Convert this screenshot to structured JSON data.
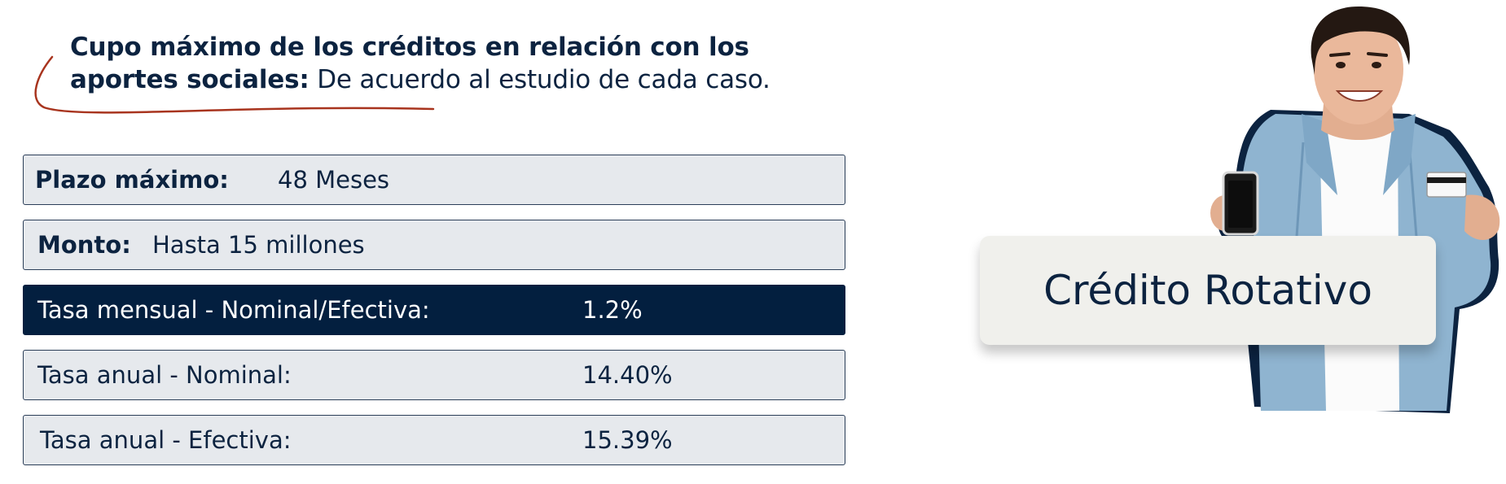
{
  "note": {
    "bold_text": "Cupo máximo de los créditos en relación con los aportes sociales:",
    "regular_text": " De acuerdo al estudio de cada caso."
  },
  "rows": {
    "plazo": {
      "label": "Plazo máximo:",
      "value": "48 Meses"
    },
    "monto": {
      "label": "Monto:",
      "value": "Hasta 15 millones"
    },
    "mensual": {
      "label": "Tasa mensual - Nominal/Efectiva:",
      "value": "1.2%"
    },
    "nominal": {
      "label": "Tasa anual - Nominal:",
      "value": "14.40%"
    },
    "efectiva": {
      "label": "Tasa anual - Efectiva:",
      "value": "15.39%"
    }
  },
  "card": {
    "title": "Crédito Rotativo"
  },
  "colors": {
    "navy": "#031f3f",
    "text": "#0c2340",
    "row_bg": "#e6e9ed",
    "accent_swoosh": "#a8341e",
    "card_bg": "#f0f0ec"
  },
  "icons": {
    "person": "person-with-phone-and-card-illustration",
    "swoosh": "underline-swoosh"
  }
}
